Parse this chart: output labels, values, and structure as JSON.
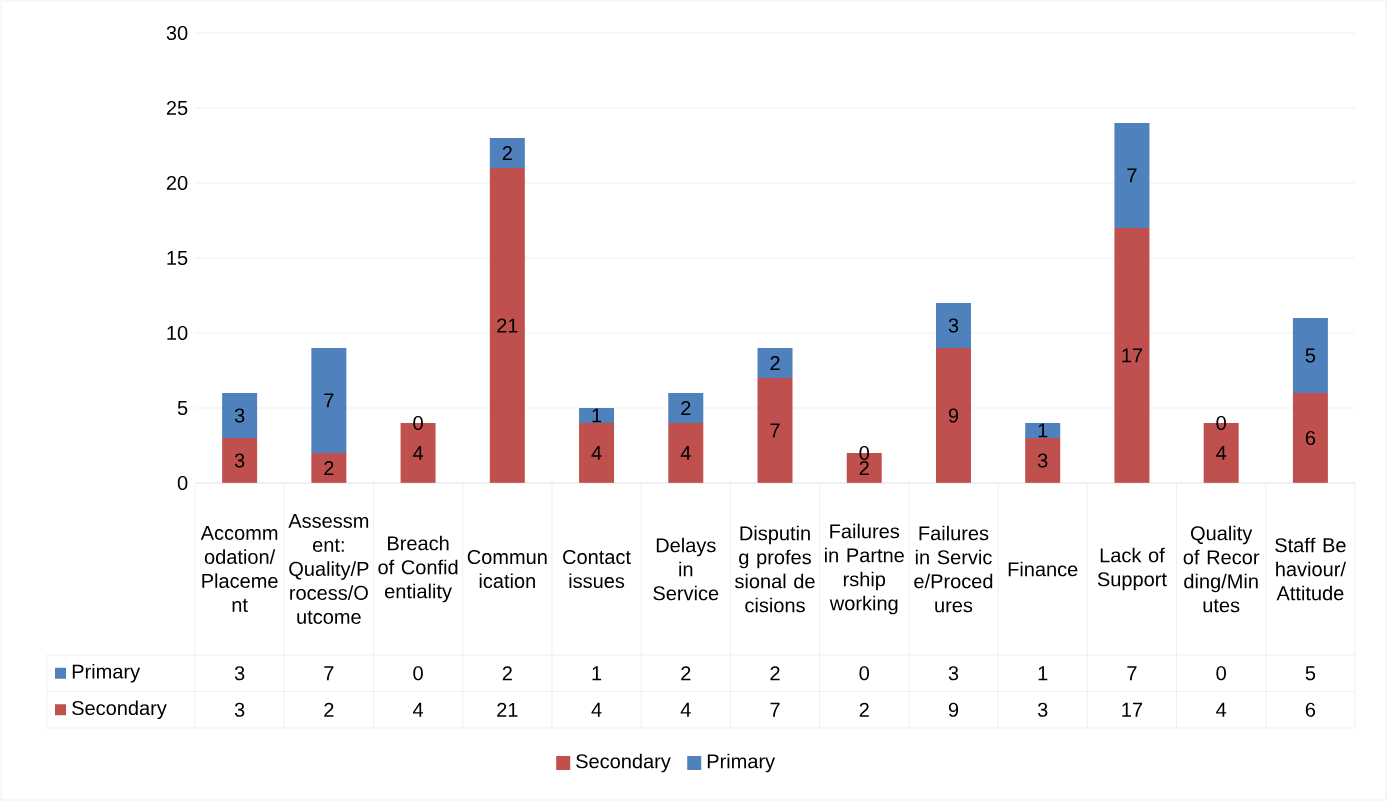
{
  "chart_data": {
    "type": "bar",
    "stacked": true,
    "categories": [
      "Accommodation/Placement",
      "Assessment: Quality/Process/Outcome",
      "Breach of Confidentiality",
      "Communication",
      "Contact issues",
      "Delays in Service",
      "Disputing professional decisions",
      "Failures in Partnership working",
      "Failures in Service/Procedures",
      "Finance",
      "Lack of Support",
      "Quality of Recording/Minutes",
      "Staff Behaviour/Attitude"
    ],
    "series": [
      {
        "name": "Secondary",
        "color": "#c0504d",
        "values": [
          3,
          2,
          4,
          21,
          4,
          4,
          7,
          2,
          9,
          3,
          17,
          4,
          6
        ],
        "value_labels": [
          "3",
          "2",
          "4",
          "21",
          "4",
          "4",
          "7",
          "2",
          "9",
          "3",
          "17",
          "4",
          "6"
        ]
      },
      {
        "name": "Primary",
        "color": "#4f81bd",
        "values": [
          3,
          7,
          0,
          2,
          1,
          2,
          2,
          0,
          3,
          1,
          7,
          0,
          5
        ],
        "value_labels": [
          "3",
          "7",
          "0",
          "2",
          "1",
          "2",
          "2",
          "0",
          "3",
          "1",
          "7",
          "0",
          "5"
        ]
      }
    ],
    "ylim": [
      0,
      30
    ],
    "yticks": [
      0,
      5,
      10,
      15,
      20,
      25,
      30
    ],
    "grid": "y",
    "legend": "bottom",
    "data_labels": true
  }
}
